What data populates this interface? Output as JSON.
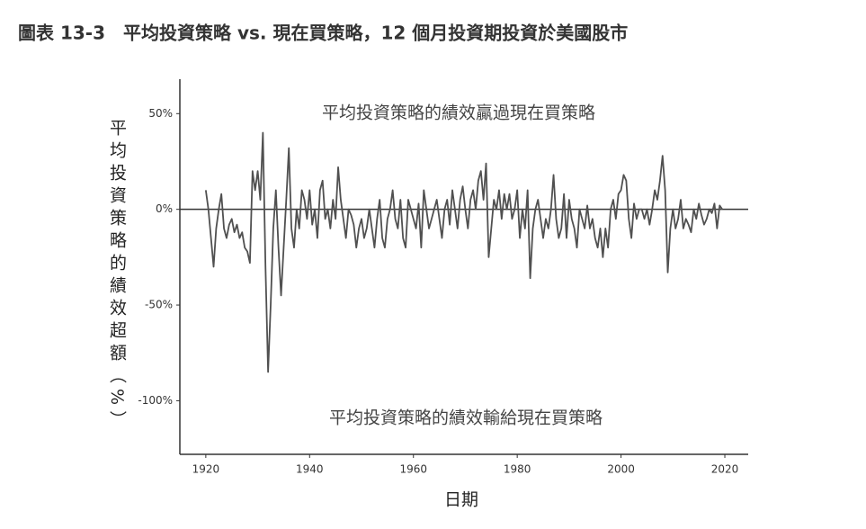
{
  "chart_data": {
    "type": "line",
    "title": "圖表 13-3　平均投資策略 vs. 現在買策略，12 個月投資期投資於美國股市",
    "y_label": "平均投資策略的績效超額（%）",
    "x_label": "日期",
    "annotations": [
      "平均投資策略的績效贏過現在買策略",
      "平均投資策略的績效輸給現在買策略"
    ],
    "color": "#505050",
    "zero_line": true,
    "xlim": [
      1915,
      2024.5
    ],
    "xticks": [
      1920,
      1940,
      1960,
      1980,
      2000,
      2020
    ],
    "ylim": [
      -128,
      68
    ],
    "yticks": [
      {
        "value": 50,
        "label": "50%"
      },
      {
        "value": 0,
        "label": "0%"
      },
      {
        "value": -50,
        "label": "-50%"
      },
      {
        "value": -100,
        "label": "-100%"
      }
    ],
    "x": [
      1920,
      1920.5,
      1921,
      1921.5,
      1922,
      1922.5,
      1923,
      1923.5,
      1924,
      1924.5,
      1925,
      1925.5,
      1926,
      1926.5,
      1927,
      1927.5,
      1928,
      1928.5,
      1929,
      1929.5,
      1930,
      1930.5,
      1931,
      1931.5,
      1932,
      1932.5,
      1933,
      1933.5,
      1934,
      1934.5,
      1935,
      1935.5,
      1936,
      1936.5,
      1937,
      1937.5,
      1938,
      1938.5,
      1939,
      1939.5,
      1940,
      1940.5,
      1941,
      1941.5,
      1942,
      1942.5,
      1943,
      1943.5,
      1944,
      1944.5,
      1945,
      1945.5,
      1946,
      1946.5,
      1947,
      1947.5,
      1948,
      1948.5,
      1949,
      1949.5,
      1950,
      1950.5,
      1951,
      1951.5,
      1952,
      1952.5,
      1953,
      1953.5,
      1954,
      1954.5,
      1955,
      1955.5,
      1956,
      1956.5,
      1957,
      1957.5,
      1958,
      1958.5,
      1959,
      1959.5,
      1960,
      1960.5,
      1961,
      1961.5,
      1962,
      1962.5,
      1963,
      1963.5,
      1964,
      1964.5,
      1965,
      1965.5,
      1966,
      1966.5,
      1967,
      1967.5,
      1968,
      1968.5,
      1969,
      1969.5,
      1970,
      1970.5,
      1971,
      1971.5,
      1972,
      1972.5,
      1973,
      1973.5,
      1974,
      1974.5,
      1975,
      1975.5,
      1976,
      1976.5,
      1977,
      1977.5,
      1978,
      1978.5,
      1979,
      1979.5,
      1980,
      1980.5,
      1981,
      1981.5,
      1982,
      1982.5,
      1983,
      1983.5,
      1984,
      1984.5,
      1985,
      1985.5,
      1986,
      1986.5,
      1987,
      1987.5,
      1988,
      1988.5,
      1989,
      1989.5,
      1990,
      1990.5,
      1991,
      1991.5,
      1992,
      1992.5,
      1993,
      1993.5,
      1994,
      1994.5,
      1995,
      1995.5,
      1996,
      1996.5,
      1997,
      1997.5,
      1998,
      1998.5,
      1999,
      1999.5,
      2000,
      2000.5,
      2001,
      2001.5,
      2002,
      2002.5,
      2003,
      2003.5,
      2004,
      2004.5,
      2005,
      2005.5,
      2006,
      2006.5,
      2007,
      2007.5,
      2008,
      2008.5,
      2009,
      2009.5,
      2010,
      2010.5,
      2011,
      2011.5,
      2012,
      2012.5,
      2013,
      2013.5,
      2014,
      2014.5,
      2015,
      2015.5,
      2016,
      2016.5,
      2017,
      2017.5,
      2018,
      2018.5,
      2019,
      2019.5
    ],
    "values": [
      10,
      0,
      -15,
      -30,
      -10,
      0,
      8,
      -10,
      -15,
      -8,
      -5,
      -12,
      -8,
      -15,
      -12,
      -20,
      -22,
      -28,
      20,
      10,
      20,
      5,
      40,
      -30,
      -85,
      -50,
      -10,
      10,
      -20,
      -45,
      -20,
      5,
      32,
      -10,
      -20,
      0,
      -10,
      10,
      5,
      -5,
      10,
      -8,
      0,
      -15,
      10,
      15,
      -5,
      0,
      -10,
      5,
      -5,
      22,
      5,
      -5,
      -15,
      0,
      -3,
      -8,
      -20,
      -10,
      -5,
      -15,
      -10,
      0,
      -10,
      -20,
      -5,
      5,
      -15,
      -20,
      -5,
      0,
      10,
      -5,
      -10,
      5,
      -15,
      -20,
      5,
      0,
      -5,
      -10,
      3,
      -20,
      10,
      0,
      -10,
      -5,
      0,
      5,
      -5,
      -15,
      0,
      5,
      -8,
      10,
      0,
      -10,
      5,
      12,
      0,
      -10,
      5,
      10,
      0,
      15,
      20,
      5,
      24,
      -25,
      -10,
      5,
      0,
      10,
      -5,
      8,
      0,
      8,
      -5,
      0,
      10,
      -15,
      0,
      -10,
      10,
      -36,
      -10,
      0,
      5,
      -5,
      -15,
      -5,
      -10,
      0,
      18,
      -5,
      -15,
      -10,
      8,
      -15,
      5,
      -5,
      -10,
      -20,
      0,
      -5,
      -10,
      2,
      -10,
      -5,
      -15,
      -20,
      -10,
      -25,
      -10,
      -20,
      0,
      5,
      -5,
      8,
      10,
      18,
      15,
      -5,
      -15,
      3,
      -5,
      0,
      0,
      -5,
      0,
      -8,
      0,
      10,
      5,
      15,
      28,
      10,
      -33,
      -10,
      0,
      -10,
      -5,
      5,
      -10,
      -5,
      -8,
      -12,
      0,
      -5,
      3,
      -3,
      -8,
      -5,
      0,
      -2,
      3,
      -10,
      2,
      0
    ]
  }
}
